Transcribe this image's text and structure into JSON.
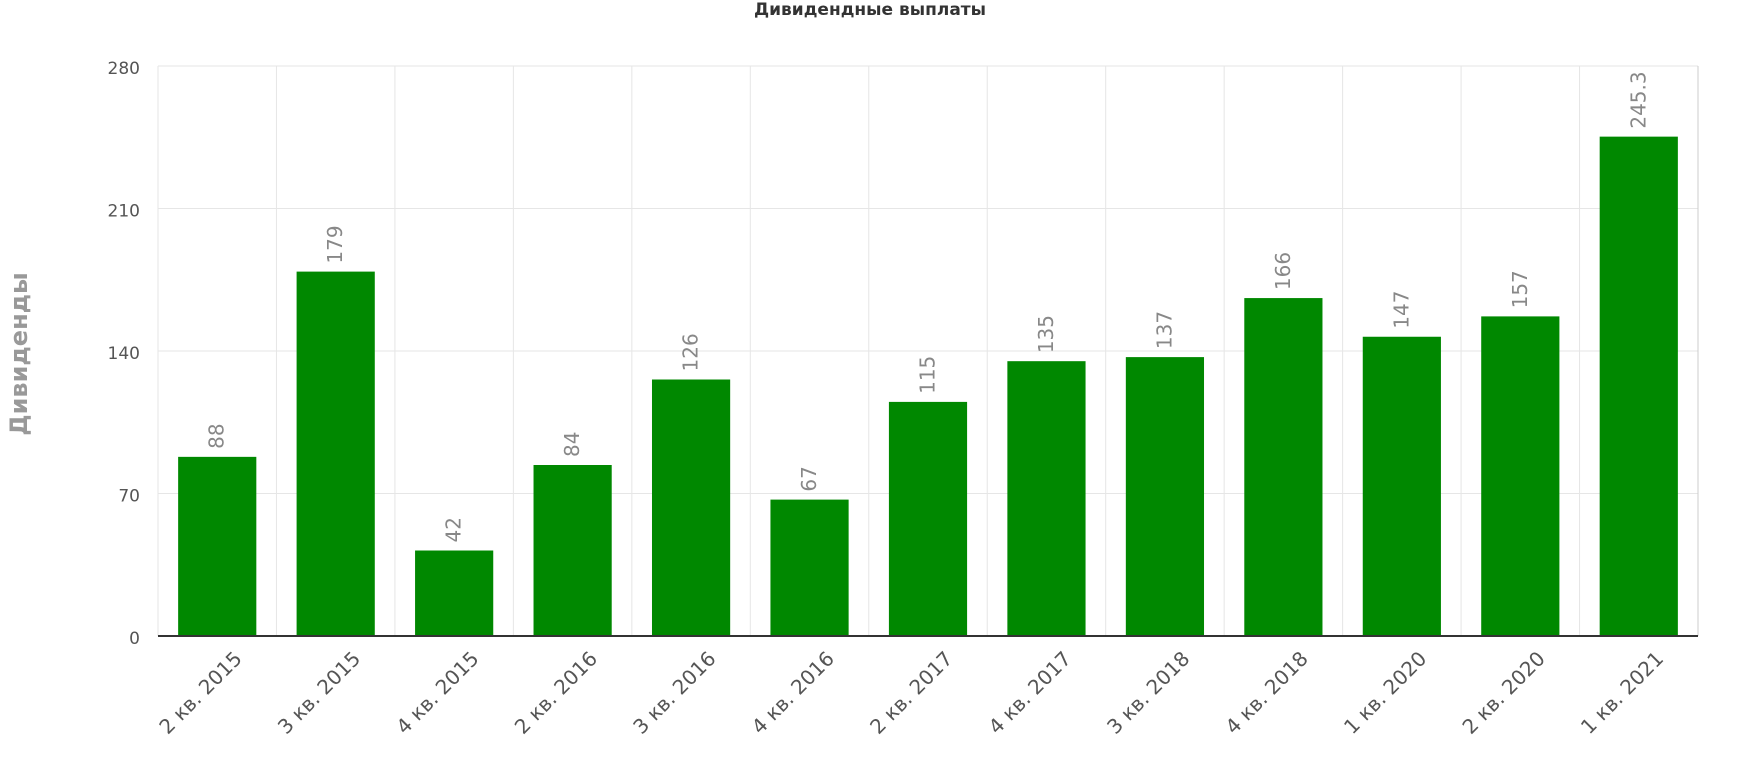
{
  "chart_data": {
    "type": "bar",
    "title": "Дивидендные выплаты",
    "y_label": "Дивиденды",
    "categories": [
      "2 кв. 2015",
      "3 кв. 2015",
      "4 кв. 2015",
      "2 кв. 2016",
      "3 кв. 2016",
      "4 кв. 2016",
      "2 кв. 2017",
      "4 кв. 2017",
      "3 кв. 2018",
      "4 кв. 2018",
      "1 кв. 2020",
      "2 кв. 2020",
      "1 кв. 2021"
    ],
    "values": [
      88,
      179,
      42,
      84,
      126,
      67,
      115,
      135,
      137,
      166,
      147,
      157,
      245.3
    ],
    "color": "#008800",
    "ylim": [
      0,
      280
    ],
    "yticks": [
      0,
      70,
      140,
      210,
      280
    ],
    "grid": true
  }
}
